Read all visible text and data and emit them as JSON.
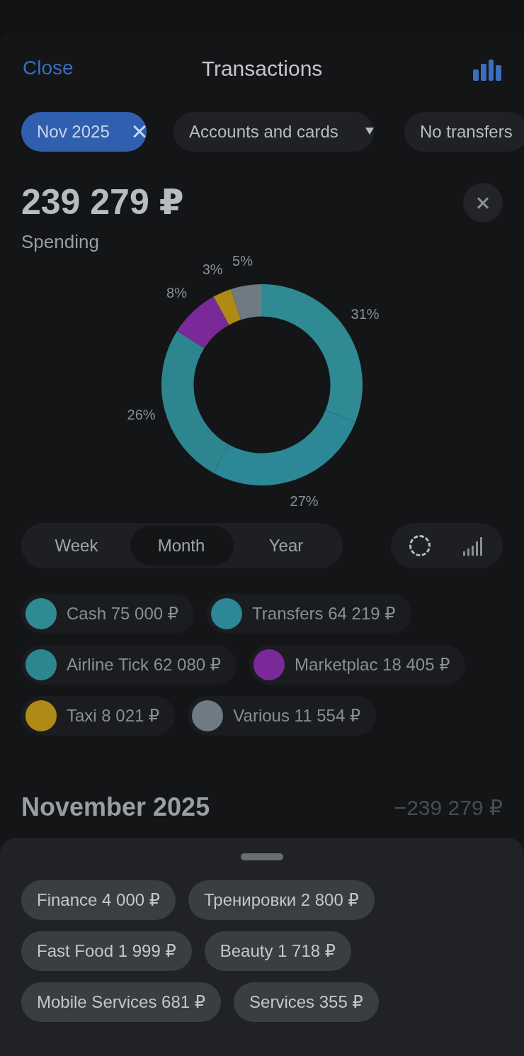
{
  "chart_data": {
    "type": "donut",
    "title": "239 279 ₽",
    "subtitle": "Spending",
    "categories": [
      "Cash 75 000 ₽",
      "Transfers 64 219 ₽",
      "Airline Tick 62 080 ₽",
      "Marketplac 18 405 ₽",
      "Taxi 8 021 ₽",
      "Various 11 554 ₽"
    ],
    "values": [
      31,
      27,
      26,
      8,
      3,
      5
    ],
    "value_labels": [
      "31%",
      "27%",
      "26%",
      "8%",
      "3%",
      "5%"
    ],
    "colors": [
      "#2f8a93",
      "#2c8796",
      "#2d8590",
      "#7a2a98",
      "#b08a16",
      "#6f7a82"
    ],
    "legend": "bottom",
    "annotations": [
      "Close",
      "Transactions",
      "Nov 2025",
      "Accounts and cards",
      "No transfers",
      "Week",
      "Month",
      "Year",
      "November 2025",
      "−239 279 ₽",
      "Finance 4 000 ₽",
      "Тренировки 2 800 ₽",
      "Fast Food 1 999 ₽",
      "Beauty 1 718 ₽",
      "Mobile Services 681 ₽",
      "Services 355 ₽"
    ]
  }
}
